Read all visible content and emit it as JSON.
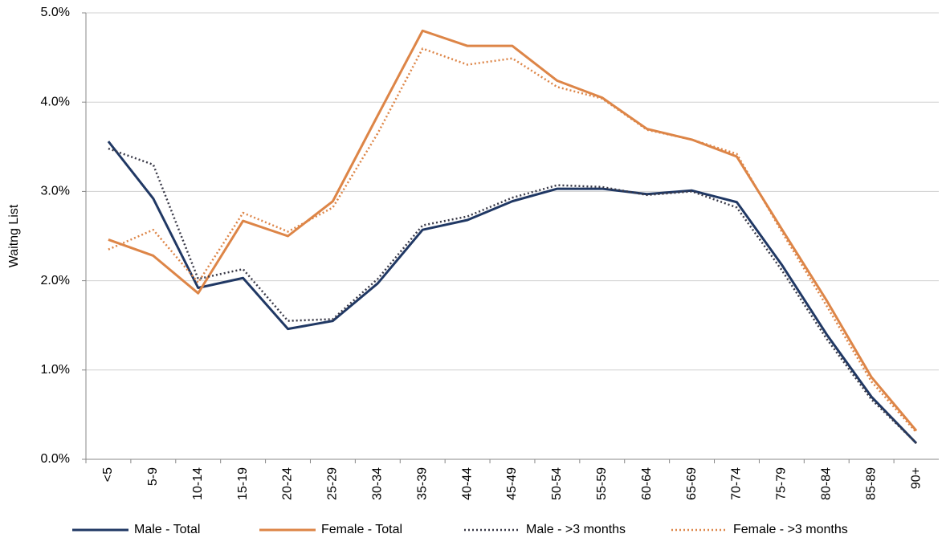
{
  "chart_data": {
    "type": "line",
    "y_label": "Waitng List",
    "categories": [
      "<5",
      "5-9",
      "10-14",
      "15-19",
      "20-24",
      "25-29",
      "30-34",
      "35-39",
      "40-44",
      "45-49",
      "50-54",
      "55-59",
      "60-64",
      "65-69",
      "70-74",
      "75-79",
      "80-84",
      "85-89",
      "90+"
    ],
    "series": [
      {
        "name": "Male - Total",
        "color": "#203864",
        "line_style": "solid",
        "values": [
          3.56,
          2.92,
          1.92,
          2.03,
          1.46,
          1.55,
          1.97,
          2.57,
          2.68,
          2.89,
          3.03,
          3.03,
          2.97,
          3.01,
          2.88,
          2.18,
          1.4,
          0.7,
          0.18
        ]
      },
      {
        "name": "Female - Total",
        "color": "#dd8547",
        "line_style": "solid",
        "values": [
          2.46,
          2.28,
          1.86,
          2.67,
          2.5,
          2.89,
          3.85,
          4.8,
          4.63,
          4.63,
          4.24,
          4.05,
          3.7,
          3.58,
          3.39,
          2.58,
          1.78,
          0.92,
          0.32
        ]
      },
      {
        "name": "Male - >3 months",
        "color": "#3a3a48",
        "line_style": "dotted",
        "values": [
          3.48,
          3.3,
          2.02,
          2.13,
          1.55,
          1.57,
          2.02,
          2.62,
          2.72,
          2.93,
          3.07,
          3.05,
          2.96,
          3.0,
          2.82,
          2.12,
          1.35,
          0.67,
          0.18
        ]
      },
      {
        "name": "Female - >3 months",
        "color": "#dd8547",
        "line_style": "dotted",
        "values": [
          2.35,
          2.57,
          1.98,
          2.76,
          2.55,
          2.82,
          3.65,
          4.6,
          4.42,
          4.49,
          4.17,
          4.04,
          3.69,
          3.58,
          3.42,
          2.55,
          1.72,
          0.87,
          0.3
        ]
      }
    ],
    "ylim": [
      0,
      5
    ],
    "yticks": [
      {
        "value": 0,
        "label": "0.0%"
      },
      {
        "value": 1,
        "label": "1.0%"
      },
      {
        "value": 2,
        "label": "2.0%"
      },
      {
        "value": 3,
        "label": "3.0%"
      },
      {
        "value": 4,
        "label": "4.0%"
      },
      {
        "value": 5,
        "label": "5.0%"
      }
    ],
    "grid": true,
    "legend": "bottom"
  }
}
